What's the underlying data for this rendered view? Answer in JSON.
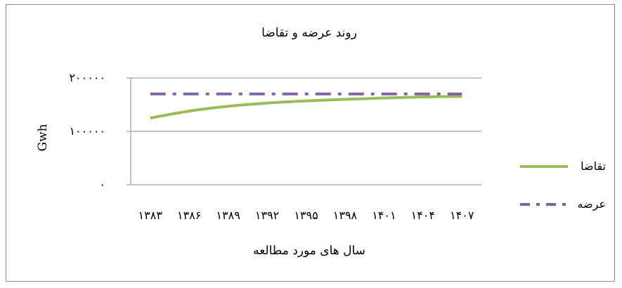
{
  "chart_data": {
    "type": "line",
    "title": "روند عرضه و تقاضا",
    "xlabel": "سال های مورد مطالعه",
    "ylabel": "Gwh",
    "categories": [
      "۱۳۸۳",
      "۱۳۸۶",
      "۱۳۸۹",
      "۱۳۹۲",
      "۱۳۹۵",
      "۱۳۹۸",
      "۱۴۰۱",
      "۱۴۰۴",
      "۱۴۰۷"
    ],
    "x": [
      1383,
      1386,
      1389,
      1392,
      1395,
      1398,
      1401,
      1404,
      1407
    ],
    "y_ticks": [
      0,
      100000,
      200000
    ],
    "y_tick_labels": [
      "۰",
      "۱۰۰۰۰۰",
      "۲۰۰۰۰۰"
    ],
    "ylim": [
      0,
      200000
    ],
    "grid": true,
    "legend_position": "right",
    "series": [
      {
        "name": "تقاضا",
        "color": "#9bbb59",
        "style": "solid",
        "values": [
          125000,
          138000,
          147000,
          153000,
          157000,
          160000,
          162500,
          164500,
          165500
        ]
      },
      {
        "name": "عرضه",
        "color": "#8064a2",
        "style": "dash-dot",
        "values": [
          170000,
          170000,
          170000,
          170000,
          170000,
          170000,
          170000,
          170000,
          170000
        ]
      }
    ]
  }
}
